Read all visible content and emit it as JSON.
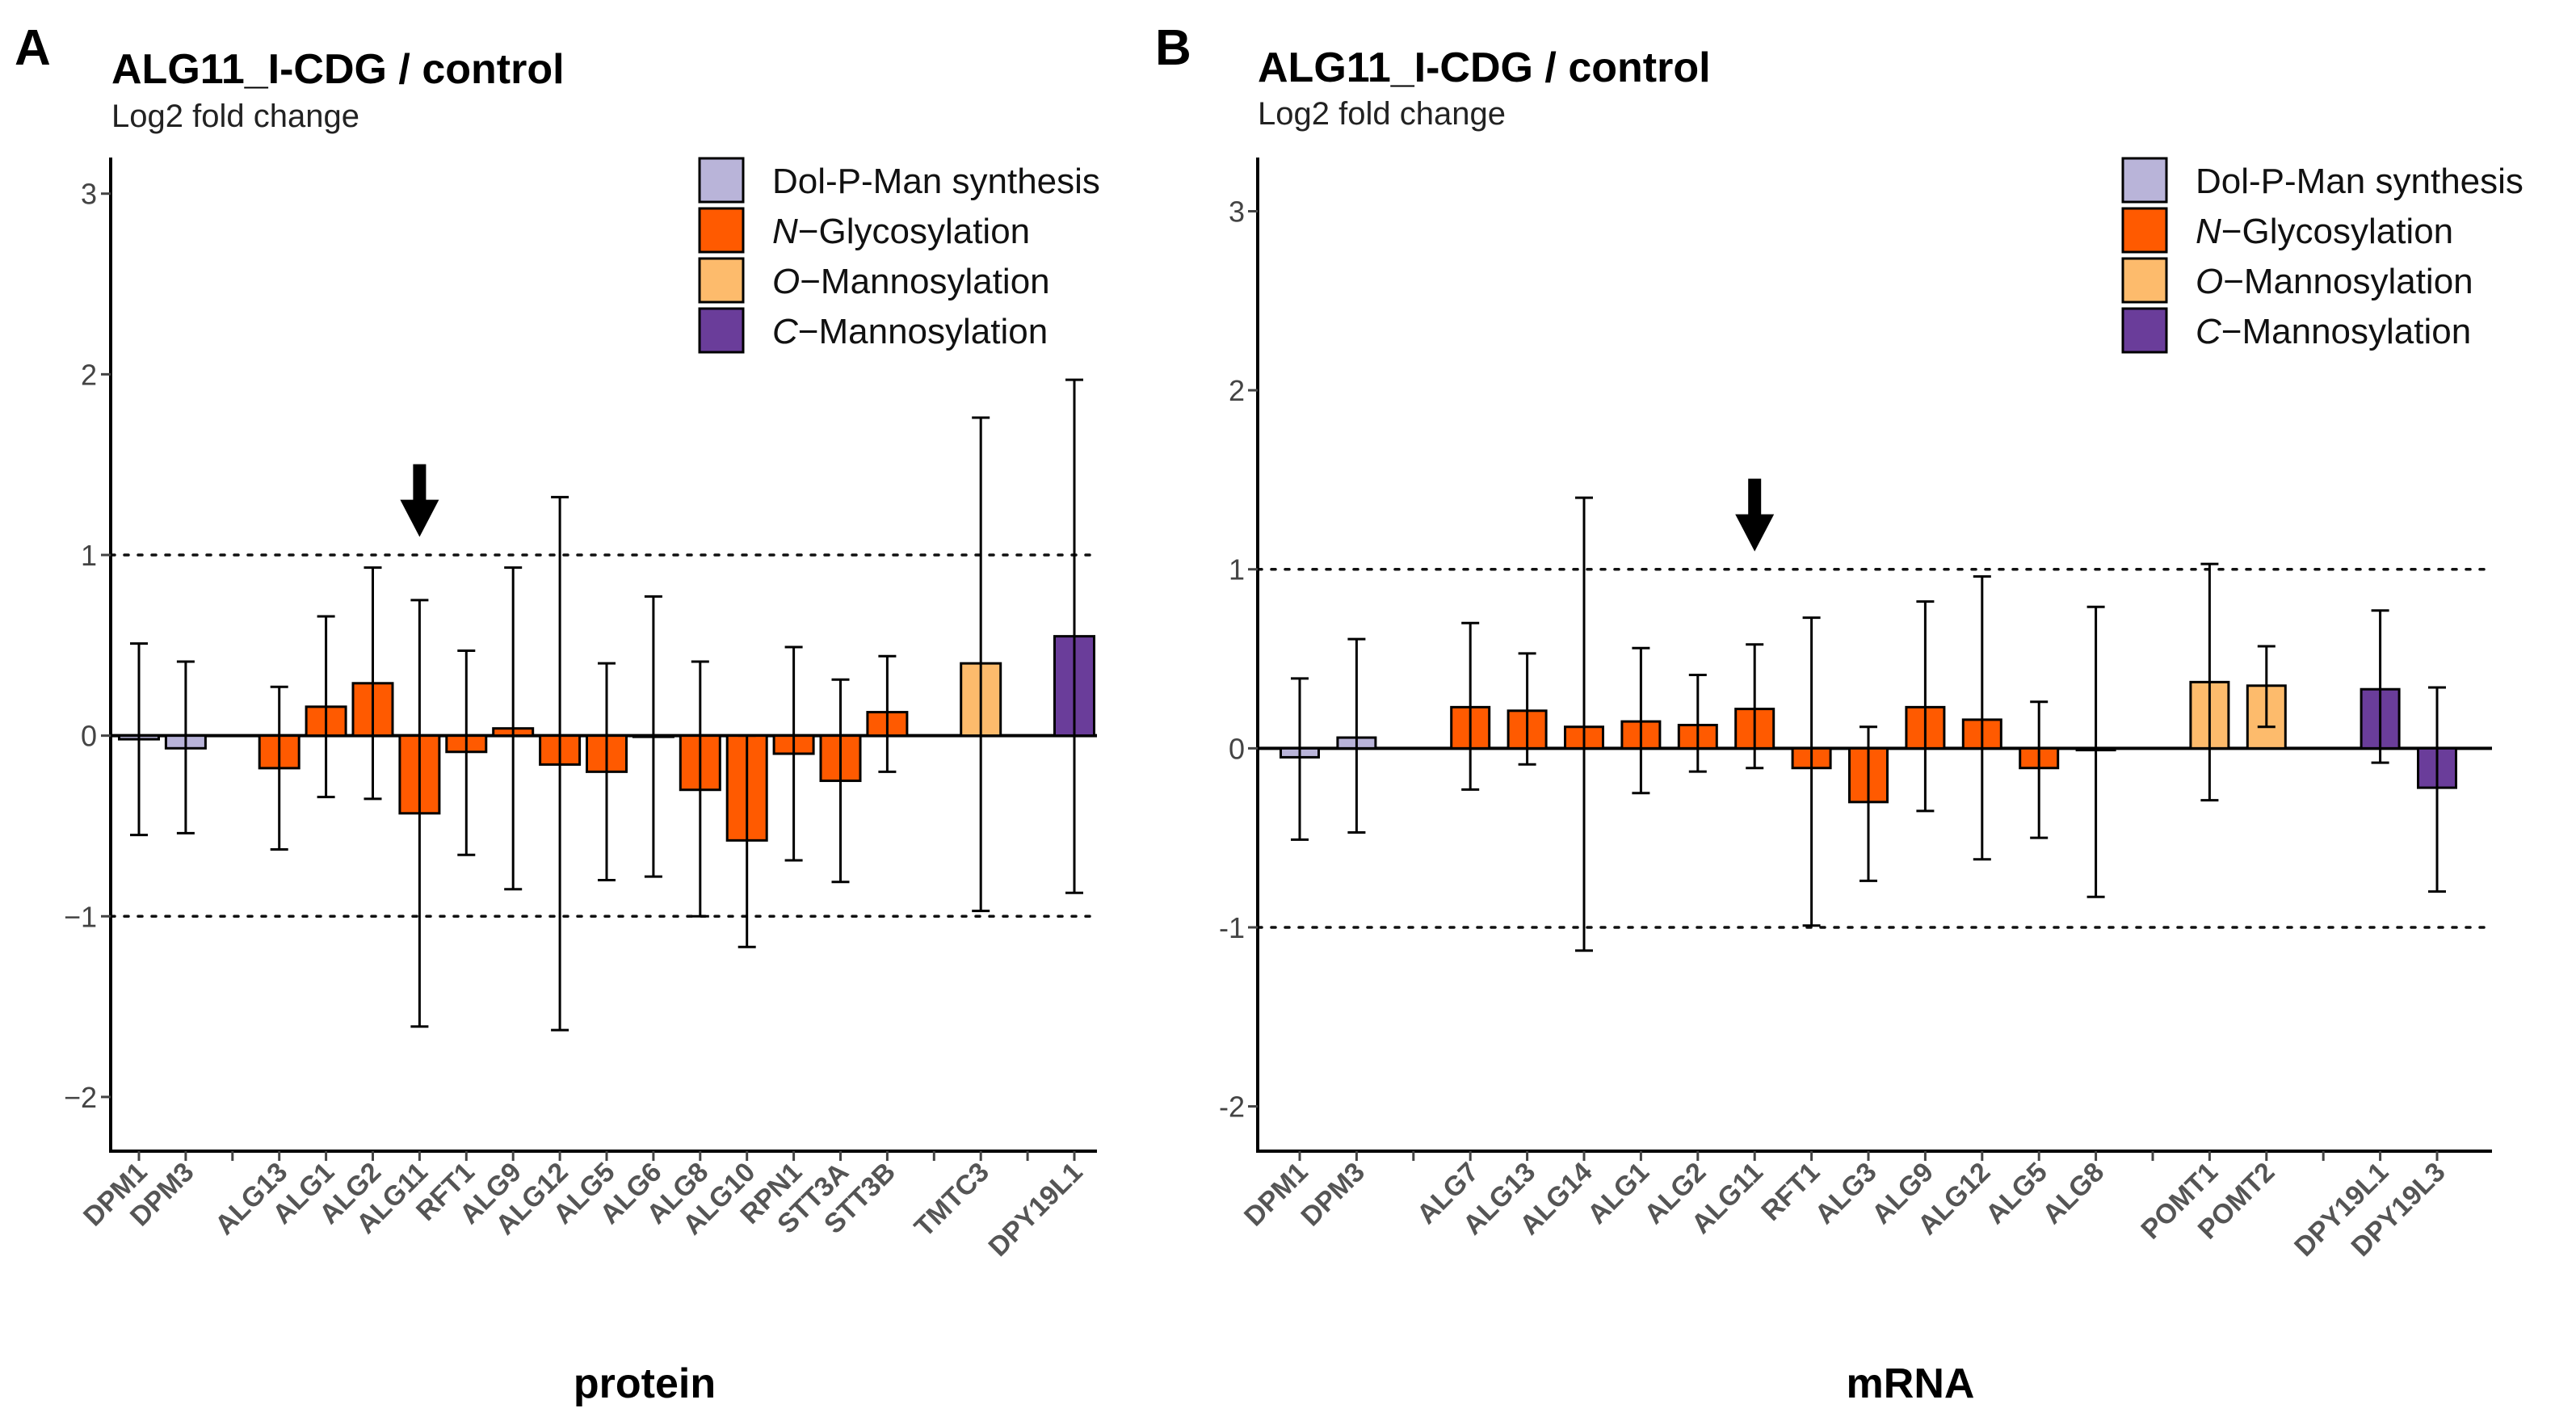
{
  "chart_data": [
    {
      "panel": "A",
      "type": "bar",
      "title": "ALG11_I-CDG / control",
      "subtitle": "Log2 fold change",
      "xlabel": "protein",
      "ylabel": "Log2 fold change",
      "ylim": [
        -2.3,
        3.2
      ],
      "yticks": [
        -2,
        -1,
        0,
        1,
        2,
        3
      ],
      "tick_labels": [
        "−2",
        "−1",
        "0",
        "1",
        "2",
        "3"
      ],
      "reference_lines": [
        1,
        -1
      ],
      "arrow_category": "ALG11",
      "categories": [
        "DPM1",
        "DPM3",
        "",
        "ALG13",
        "ALG1",
        "ALG2",
        "ALG11",
        "RFT1",
        "ALG9",
        "ALG12",
        "ALG5",
        "ALG6",
        "ALG8",
        "ALG10",
        "RPN1",
        "STT3A",
        "STT3B",
        "",
        "TMTC3",
        "",
        "DPY19L1"
      ],
      "groups": [
        "Dol-P-Man synthesis",
        "Dol-P-Man synthesis",
        null,
        "N-Glycosylation",
        "N-Glycosylation",
        "N-Glycosylation",
        "N-Glycosylation",
        "N-Glycosylation",
        "N-Glycosylation",
        "N-Glycosylation",
        "N-Glycosylation",
        "N-Glycosylation",
        "N-Glycosylation",
        "N-Glycosylation",
        "N-Glycosylation",
        "N-Glycosylation",
        "N-Glycosylation",
        null,
        "O-Mannosylation",
        null,
        "C-Mannosylation"
      ],
      "values": [
        -0.02,
        -0.07,
        null,
        -0.18,
        0.16,
        0.29,
        -0.43,
        -0.09,
        0.04,
        -0.16,
        -0.2,
        0.0,
        -0.3,
        -0.58,
        -0.1,
        -0.25,
        0.13,
        null,
        0.4,
        null,
        0.55
      ],
      "error_low": [
        -0.55,
        -0.54,
        null,
        -0.63,
        -0.34,
        -0.35,
        -1.61,
        -0.66,
        -0.85,
        -1.63,
        -0.8,
        -0.78,
        -1.0,
        -1.17,
        -0.69,
        -0.81,
        -0.2,
        null,
        -0.97,
        null,
        -0.87
      ],
      "error_high": [
        0.51,
        0.41,
        null,
        0.27,
        0.66,
        0.93,
        0.75,
        0.47,
        0.93,
        1.32,
        0.4,
        0.77,
        0.41,
        0.0,
        0.49,
        0.31,
        0.44,
        null,
        1.76,
        null,
        1.97
      ]
    },
    {
      "panel": "B",
      "type": "bar",
      "title": "ALG11_I-CDG / control",
      "subtitle": "Log2 fold change",
      "xlabel": "mRNA",
      "ylabel": "Log2 fold change",
      "ylim": [
        -2.25,
        3.3
      ],
      "yticks": [
        -2,
        -1,
        0,
        1,
        2,
        3
      ],
      "tick_labels": [
        "-2",
        "-1",
        "0",
        "1",
        "2",
        "3"
      ],
      "reference_lines": [
        1,
        -1
      ],
      "arrow_category": "ALG11",
      "categories": [
        "DPM1",
        "DPM3",
        "",
        "ALG7",
        "ALG13",
        "ALG14",
        "ALG1",
        "ALG2",
        "ALG11",
        "RFT1",
        "ALG3",
        "ALG9",
        "ALG12",
        "ALG5",
        "ALG8",
        "",
        "POMT1",
        "POMT2",
        "",
        "DPY19L1",
        "DPY19L3"
      ],
      "groups": [
        "Dol-P-Man synthesis",
        "Dol-P-Man synthesis",
        null,
        "N-Glycosylation",
        "N-Glycosylation",
        "N-Glycosylation",
        "N-Glycosylation",
        "N-Glycosylation",
        "N-Glycosylation",
        "N-Glycosylation",
        "N-Glycosylation",
        "N-Glycosylation",
        "N-Glycosylation",
        "N-Glycosylation",
        "N-Glycosylation",
        null,
        "O-Mannosylation",
        "O-Mannosylation",
        null,
        "C-Mannosylation",
        "C-Mannosylation"
      ],
      "values": [
        -0.05,
        0.06,
        null,
        0.23,
        0.21,
        0.12,
        0.15,
        0.13,
        0.22,
        -0.11,
        -0.3,
        0.23,
        0.16,
        -0.11,
        -0.01,
        null,
        0.37,
        0.35,
        null,
        0.33,
        -0.22
      ],
      "error_low": [
        -0.51,
        -0.47,
        null,
        -0.23,
        -0.09,
        -1.13,
        -0.25,
        -0.13,
        -0.11,
        -0.99,
        -0.74,
        -0.35,
        -0.62,
        -0.5,
        -0.83,
        null,
        -0.29,
        0.12,
        null,
        -0.08,
        -0.8
      ],
      "error_high": [
        0.39,
        0.61,
        null,
        0.7,
        0.53,
        1.4,
        0.56,
        0.41,
        0.58,
        0.73,
        0.12,
        0.82,
        0.96,
        0.26,
        0.79,
        null,
        1.03,
        0.57,
        null,
        0.77,
        0.34
      ]
    }
  ],
  "legend": [
    {
      "label": "Dol-P-Man synthesis",
      "italic_prefix": "",
      "rest": "Dol-P-Man synthesis",
      "group": "Dol-P-Man synthesis",
      "color": "#b9b4d9"
    },
    {
      "label": "N−Glycosylation",
      "italic_prefix": "N",
      "rest": "−Glycosylation",
      "group": "N-Glycosylation",
      "color": "#ff5a00"
    },
    {
      "label": "O−Mannosylation",
      "italic_prefix": "O",
      "rest": "−Mannosylation",
      "group": "O-Mannosylation",
      "color": "#fdbb6c"
    },
    {
      "label": "C−Mannosylation",
      "italic_prefix": "C",
      "rest": "−Mannosylation",
      "group": "C-Mannosylation",
      "color": "#6a3d9a"
    }
  ]
}
